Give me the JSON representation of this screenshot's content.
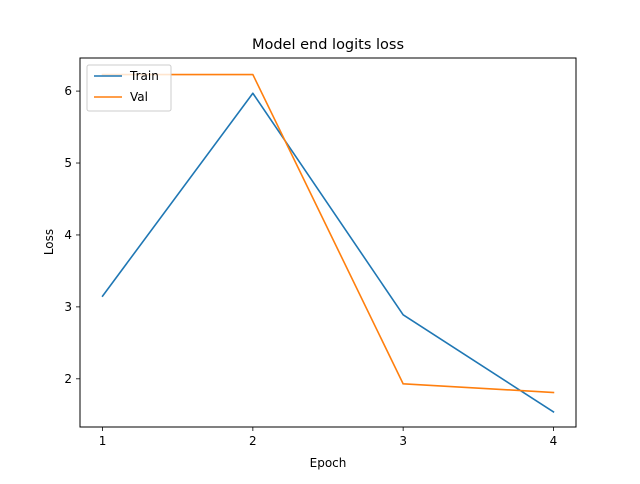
{
  "chart_data": {
    "type": "line",
    "title": "Model end logits loss",
    "xlabel": "Epoch",
    "ylabel": "Loss",
    "x": [
      1,
      2,
      3,
      4
    ],
    "xticks": [
      "1",
      "2",
      "3",
      "4"
    ],
    "yticks": [
      "2",
      "3",
      "4",
      "5",
      "6"
    ],
    "xlim": [
      0.85,
      4.15
    ],
    "ylim": [
      1.33,
      6.46
    ],
    "grid": false,
    "legend_position": "top-left",
    "series": [
      {
        "name": "Train",
        "color": "#1f77b4",
        "values": [
          3.15,
          5.97,
          2.89,
          1.54
        ]
      },
      {
        "name": "Val",
        "color": "#ff7f0e",
        "values": [
          6.23,
          6.23,
          1.93,
          1.81
        ]
      }
    ]
  }
}
